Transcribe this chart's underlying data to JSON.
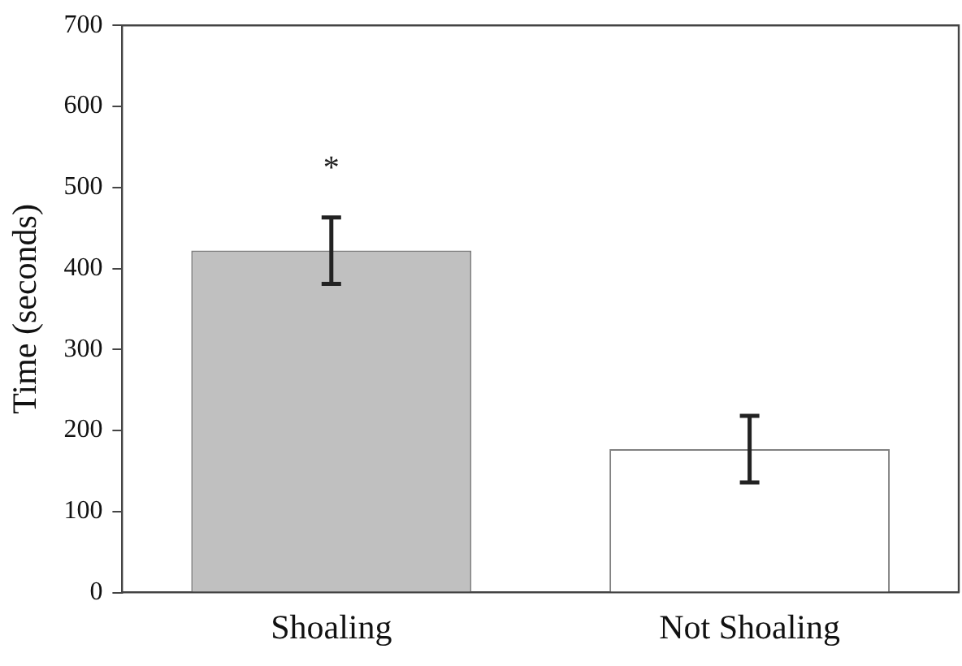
{
  "chart_data": {
    "type": "bar",
    "ylabel": "Time (seconds)",
    "categories": [
      "Shoaling",
      "Not Shoaling"
    ],
    "values": [
      422,
      177
    ],
    "colors": [
      "#c0c0c0",
      "#ffffff"
    ],
    "errors": [
      41,
      41
    ],
    "ylim": [
      0,
      700
    ],
    "yticks": [
      0,
      100,
      200,
      300,
      400,
      500,
      600,
      700
    ],
    "grid": false,
    "legend": false,
    "annotations": [
      "*"
    ]
  }
}
